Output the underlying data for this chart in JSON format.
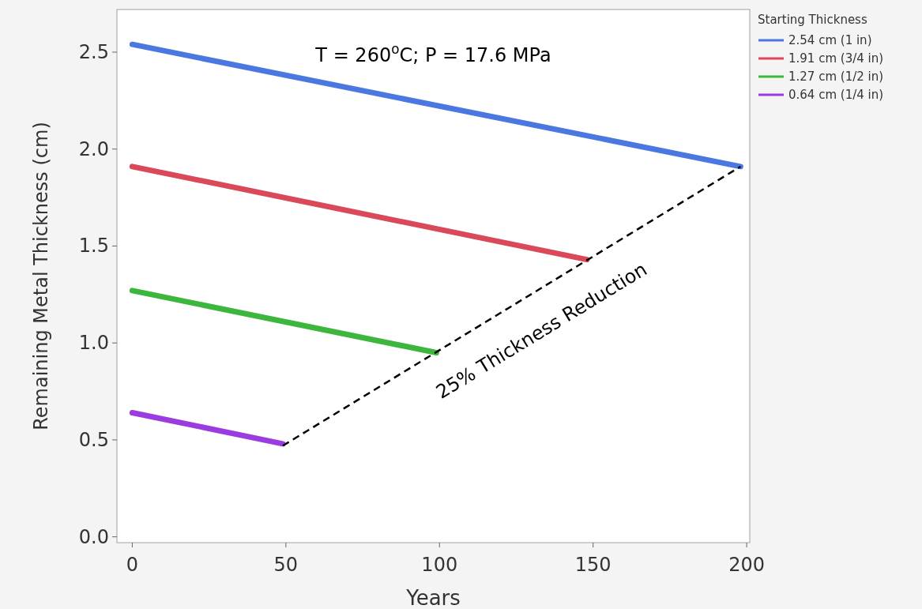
{
  "chart_data": {
    "type": "line",
    "title": "T = 260$^{o}$C; P = 17.6 MPa",
    "xlabel": "Years",
    "ylabel": "Remaining Metal Thickness (cm)",
    "legend_title": "Starting Thickness",
    "xlim": [
      -5,
      201
    ],
    "ylim": [
      -0.03,
      2.72
    ],
    "xticks": [
      0,
      50,
      100,
      150,
      200
    ],
    "yticks": [
      {
        "value": 0,
        "label": "0.0"
      },
      {
        "value": 0.5,
        "label": "0.5"
      },
      {
        "value": 1,
        "label": "1.0"
      },
      {
        "value": 1.5,
        "label": "1.5"
      },
      {
        "value": 2,
        "label": "2.0"
      },
      {
        "value": 2.5,
        "label": "2.5"
      }
    ],
    "grid": false,
    "legend": "top right",
    "marker": "none",
    "line_style": "solid",
    "series": [
      {
        "name": "2.54 cm (1 in)",
        "color": "#4a78e0",
        "x": [
          0,
          198
        ],
        "values": [
          2.54,
          1.91
        ]
      },
      {
        "name": "1.91 cm (3/4 in)",
        "color": "#d9495a",
        "x": [
          0,
          148
        ],
        "values": [
          1.91,
          1.43
        ]
      },
      {
        "name": "1.27 cm (1/2 in)",
        "color": "#3db63d",
        "x": [
          0,
          99
        ],
        "values": [
          1.27,
          0.95
        ]
      },
      {
        "name": "0.64 cm (1/4 in)",
        "color": "#9b3ce0",
        "x": [
          0,
          49
        ],
        "values": [
          0.64,
          0.48
        ]
      },
      {
        "type": "line",
        "color": "#000000",
        "line_style": "dashed",
        "x": [
          49,
          198
        ],
        "values": [
          0.47,
          1.91
        ]
      }
    ],
    "annotations": [
      "25% Thickness Reduction"
    ]
  }
}
